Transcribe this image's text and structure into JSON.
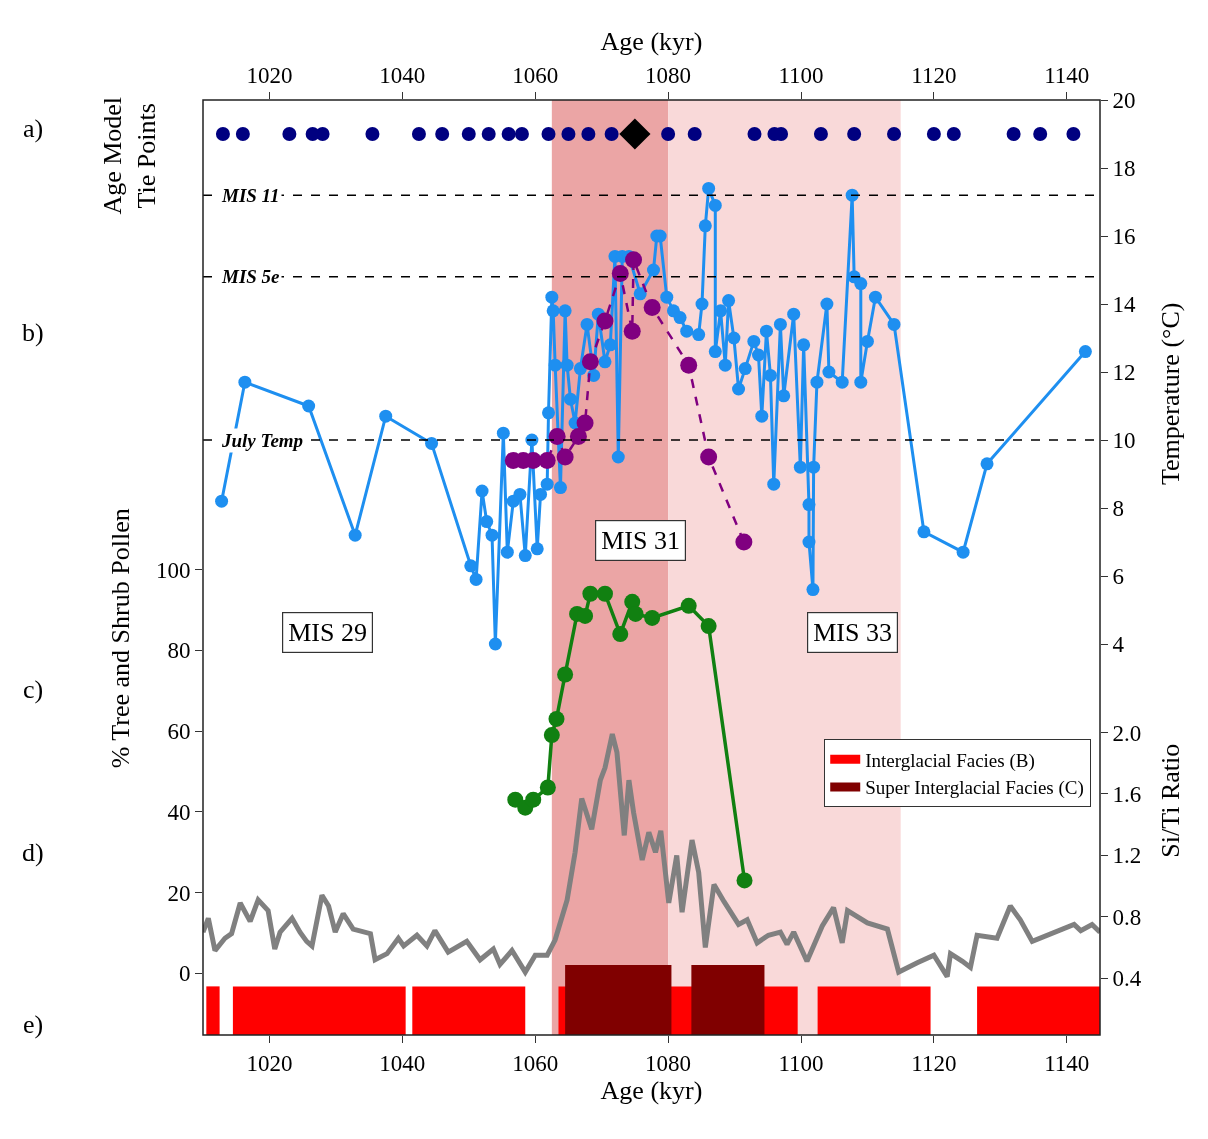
{
  "chart_data": {
    "type": "line",
    "xlabel": "Age (kyr)",
    "x2label": "Age (kyr)",
    "ylabel": "% Tree and Shrub Pollen",
    "y2label": "Temperature (°C)",
    "y3label": "Si/Ti Ratio",
    "xlim": [
      1010,
      1145
    ],
    "xticks": [
      1020,
      1040,
      1060,
      1080,
      1100,
      1120,
      1140
    ],
    "x2lim": [
      1010,
      1145
    ],
    "x2ticks": [
      1020,
      1040,
      1060,
      1080,
      1100,
      1120,
      1140
    ],
    "ylim": [
      -15.3,
      216.3
    ],
    "yticks": [
      0,
      20,
      40,
      60,
      80,
      100
    ],
    "y2lim": [
      -7.5,
      20
    ],
    "y2ticks": [
      4,
      6,
      8,
      10,
      12,
      14,
      16,
      18,
      20
    ],
    "y3lim": [
      0.03,
      6.12
    ],
    "y3ticks": [
      0.4,
      0.8,
      1.2,
      1.6,
      {
        "value": 2,
        "label": "2.0"
      }
    ],
    "grid": false,
    "legend": "right",
    "bands": [
      {
        "axis": "x",
        "from": 1062.5,
        "to": 1080,
        "color": "#eba5a5"
      },
      {
        "axis": "x",
        "from": 1080,
        "to": 1115,
        "color": "#f9d9d9"
      },
      {
        "axis": "x",
        "from": 1010.5,
        "to": 1012.5,
        "color": "#ff0000",
        "label": "Interglacial Facies (B)"
      },
      {
        "axis": "x",
        "from": 1014.5,
        "to": 1040.5,
        "color": "#ff0000"
      },
      {
        "axis": "x",
        "from": 1041.5,
        "to": 1058.5,
        "color": "#ff0000"
      },
      {
        "axis": "x",
        "from": 1063.5,
        "to": 1099.5,
        "color": "#ff0000"
      },
      {
        "axis": "x",
        "from": 1102.5,
        "to": 1119.5,
        "color": "#ff0000"
      },
      {
        "axis": "x",
        "from": 1126.5,
        "to": 1145,
        "color": "#ff0000"
      },
      {
        "axis": "x",
        "from": 1064.5,
        "to": 1080.5,
        "color": "#800000",
        "label": "Super Interglacial Facies (C)"
      },
      {
        "axis": "x",
        "from": 1083.5,
        "to": 1094.5,
        "color": "#800000"
      }
    ],
    "ref_lines": [
      {
        "axis": "y2",
        "value": 17.2,
        "label": "MIS 11",
        "line_style": "dashed"
      },
      {
        "axis": "y2",
        "value": 14.8,
        "label": "MIS 5e",
        "line_style": "dashed"
      },
      {
        "axis": "y2",
        "value": 10,
        "label": "July Temp",
        "line_style": "dashed"
      }
    ],
    "annotations": [
      "a)",
      "Age Model\nTie Points",
      "b)",
      "c)",
      "d)",
      "e)",
      "MIS 29",
      "MIS 31",
      "MIS 33"
    ],
    "series": [
      {
        "type": "scatter",
        "axis": "y2",
        "color": "#000080",
        "marker": "circle",
        "x": [
          1013,
          1016,
          1023,
          1026.5,
          1028,
          1035.5,
          1042.5,
          1046,
          1050,
          1053,
          1056,
          1058,
          1062,
          1065,
          1068,
          1071.5,
          1080,
          1084,
          1093,
          1096,
          1097,
          1103,
          1108,
          1114,
          1120,
          1123,
          1132,
          1136,
          1141
        ],
        "values": [
          19,
          19,
          19,
          19,
          19,
          19,
          19,
          19,
          19,
          19,
          19,
          19,
          19,
          19,
          19,
          19,
          19,
          19,
          19,
          19,
          19,
          19,
          19,
          19,
          19,
          19,
          19,
          19,
          19
        ]
      },
      {
        "type": "scatter",
        "axis": "y2",
        "color": "#000000",
        "marker": "diamond",
        "x": [
          1075
        ],
        "values": [
          19
        ]
      },
      {
        "axis": "y2",
        "color": "#1e8ff0",
        "marker": "circle",
        "line_style": "solid",
        "x": [
          1012.8,
          1016.3,
          1025.9,
          1032.9,
          1037.5,
          1044.4,
          1050.3,
          1051.1,
          1052.0,
          1052.7,
          1053.5,
          1054.0,
          1055.2,
          1055.8,
          1056.7,
          1057.7,
          1058.5,
          1059.5,
          1060.3,
          1060.8,
          1061.8,
          1062.0,
          1062.5,
          1062.7,
          1063.0,
          1063.8,
          1064.5,
          1064.8,
          1065.3,
          1066.0,
          1066.8,
          1067.8,
          1068.8,
          1069.5,
          1070.5,
          1071.3,
          1072.0,
          1072.5,
          1073.1,
          1074.1,
          1075.8,
          1077.8,
          1078.3,
          1078.8,
          1079.8,
          1080.8,
          1081.8,
          1082.8,
          1084.6,
          1085.1,
          1085.6,
          1086.1,
          1087.1,
          1087.1,
          1087.9,
          1088.6,
          1089.1,
          1089.9,
          1090.6,
          1091.6,
          1092.9,
          1093.6,
          1094.1,
          1094.8,
          1095.4,
          1095.9,
          1096.9,
          1097.4,
          1098.9,
          1099.9,
          1100.4,
          1101.2,
          1101.2,
          1101.8,
          1101.9,
          1102.4,
          1103.9,
          1104.2,
          1106.2,
          1107.7,
          1108.0,
          1109.0,
          1109.0,
          1110.0,
          1111.2,
          1114.0,
          1118.5,
          1124.4,
          1128.0,
          1142.8
        ],
        "values": [
          8.2,
          11.7,
          11.0,
          7.2,
          10.7,
          9.9,
          6.3,
          5.9,
          8.5,
          7.6,
          7.2,
          4.0,
          10.2,
          6.7,
          8.2,
          8.4,
          6.6,
          10.0,
          6.8,
          8.4,
          8.7,
          10.8,
          14.2,
          13.8,
          12.2,
          8.6,
          13.8,
          12.2,
          11.2,
          10.5,
          12.1,
          13.4,
          11.9,
          13.7,
          12.3,
          12.8,
          15.4,
          9.5,
          15.4,
          15.4,
          14.3,
          15.0,
          16.0,
          16.0,
          14.2,
          13.8,
          13.6,
          13.2,
          13.1,
          14.0,
          16.3,
          17.4,
          16.9,
          12.6,
          13.8,
          12.2,
          14.1,
          13.0,
          11.5,
          12.1,
          12.9,
          12.5,
          10.7,
          13.2,
          11.9,
          8.7,
          13.4,
          11.3,
          13.7,
          9.2,
          12.8,
          8.1,
          7.0,
          5.6,
          9.2,
          11.7,
          14.0,
          12.0,
          11.7,
          17.2,
          14.8,
          14.6,
          11.7,
          12.9,
          14.2,
          13.4,
          7.3,
          6.7,
          9.3,
          12.6
        ]
      },
      {
        "axis": "y2",
        "color": "#800080",
        "marker": "circle",
        "line_style": "dashed",
        "x": [
          1056.7,
          1058.2,
          1059.7,
          1061.8,
          1063.3,
          1064.5,
          1066.5,
          1067.5,
          1068.3,
          1070.5,
          1072.8,
          1074.6,
          1074.8,
          1077.6,
          1083.1,
          1086.1,
          1091.4
        ],
        "values": [
          9.4,
          9.4,
          9.4,
          9.4,
          10.1,
          9.5,
          10.1,
          10.5,
          12.3,
          13.5,
          14.9,
          13.2,
          15.3,
          13.9,
          12.2,
          9.5,
          7.0
        ]
      },
      {
        "axis": "y",
        "color": "#118011",
        "marker": "circle",
        "line_style": "solid",
        "x": [
          1057.0,
          1058.5,
          1059.7,
          1061.9,
          1062.5,
          1063.2,
          1064.5,
          1066.3,
          1067.5,
          1068.3,
          1070.5,
          1072.8,
          1074.6,
          1075.1,
          1077.6,
          1083.1,
          1086.1,
          1091.5
        ],
        "values": [
          43,
          41,
          43,
          46,
          59,
          63,
          74,
          89,
          88.5,
          94,
          94,
          84,
          92,
          89,
          88,
          91,
          86,
          23
        ]
      },
      {
        "axis": "y3",
        "color": "#808080",
        "marker": "none",
        "line_style": "solid",
        "x": [
          1010.0,
          1010.8,
          1011.8,
          1013.3,
          1014.3,
          1015.6,
          1017.1,
          1018.3,
          1019.8,
          1020.8,
          1021.6,
          1023.4,
          1024.6,
          1025.6,
          1026.4,
          1027.9,
          1028.9,
          1029.9,
          1031.1,
          1032.6,
          1035.2,
          1035.9,
          1037.7,
          1039.4,
          1040.2,
          1042.2,
          1043.7,
          1044.9,
          1046.9,
          1049.7,
          1051.7,
          1053.7,
          1054.7,
          1056.5,
          1058.5,
          1060.0,
          1061.8,
          1063.0,
          1064.8,
          1066.0,
          1067.0,
          1068.5,
          1069.8,
          1070.5,
          1071.6,
          1072.3,
          1073.4,
          1074.1,
          1074.8,
          1076.1,
          1077.1,
          1078.1,
          1078.9,
          1080.1,
          1081.3,
          1082.1,
          1083.6,
          1084.6,
          1085.6,
          1086.9,
          1088.4,
          1090.6,
          1091.9,
          1093.4,
          1095.1,
          1096.9,
          1097.9,
          1098.9,
          1100.9,
          1103.2,
          1104.9,
          1106.2,
          1107.0,
          1110.0,
          1113.0,
          1114.7,
          1117.5,
          1120.0,
          1122.0,
          1122.5,
          1124.3,
          1125.5,
          1126.5,
          1129.5,
          1131.5,
          1133.0,
          1134.8,
          1141.1,
          1142.1,
          1143.8,
          1145.0
        ],
        "values": [
          0.7,
          0.79,
          0.58,
          0.66,
          0.69,
          0.89,
          0.77,
          0.91,
          0.84,
          0.59,
          0.7,
          0.79,
          0.7,
          0.64,
          0.61,
          0.94,
          0.87,
          0.7,
          0.82,
          0.72,
          0.69,
          0.52,
          0.56,
          0.66,
          0.61,
          0.68,
          0.61,
          0.71,
          0.57,
          0.64,
          0.52,
          0.59,
          0.49,
          0.58,
          0.44,
          0.55,
          0.55,
          0.65,
          0.91,
          1.22,
          1.57,
          1.37,
          1.69,
          1.77,
          1.99,
          1.87,
          1.33,
          1.69,
          1.48,
          1.17,
          1.35,
          1.22,
          1.36,
          0.89,
          1.2,
          0.83,
          1.3,
          1.09,
          0.6,
          1.01,
          0.9,
          0.75,
          0.78,
          0.63,
          0.68,
          0.7,
          0.62,
          0.7,
          0.51,
          0.74,
          0.86,
          0.63,
          0.84,
          0.76,
          0.72,
          0.44,
          0.5,
          0.55,
          0.41,
          0.56,
          0.51,
          0.47,
          0.68,
          0.66,
          0.87,
          0.78,
          0.64,
          0.75,
          0.71,
          0.75,
          0.7
        ]
      }
    ]
  }
}
